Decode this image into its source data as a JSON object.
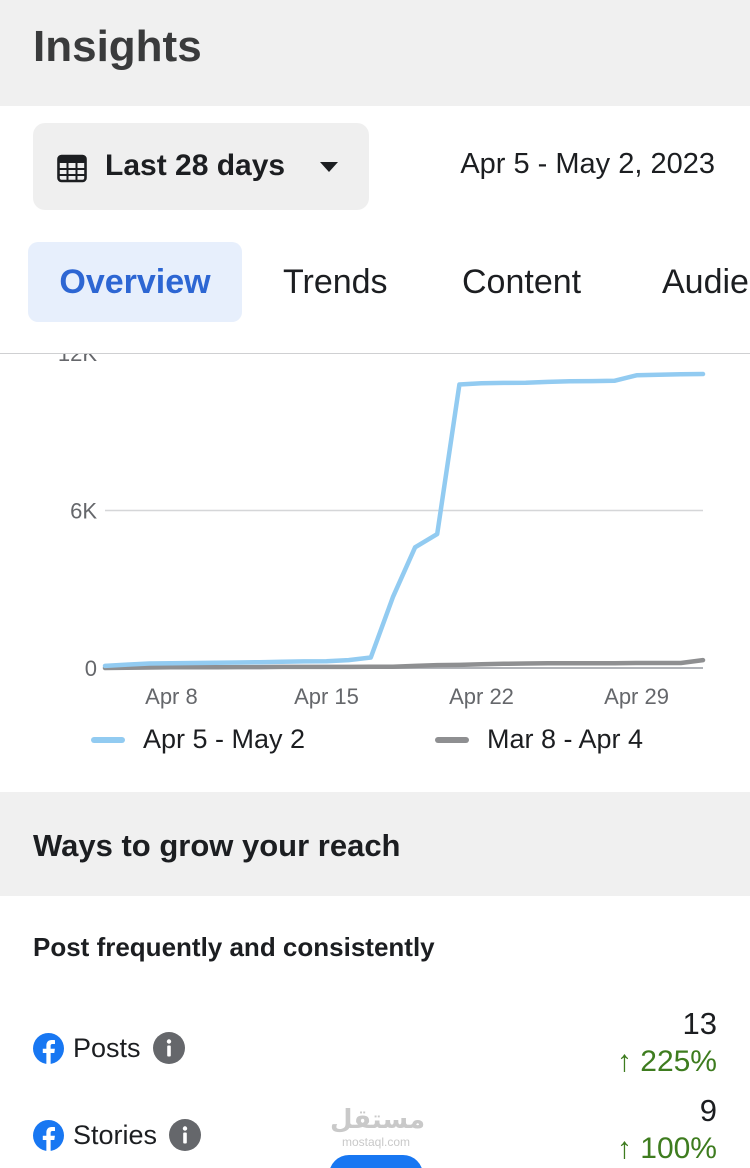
{
  "header": {
    "title": "Insights"
  },
  "date_filter": {
    "label": "Last 28 days",
    "range": "Apr 5 - May 2, 2023"
  },
  "tabs": [
    "Overview",
    "Trends",
    "Content",
    "Audie"
  ],
  "colors": {
    "current": "#92cbf1",
    "previous": "#8e8f91",
    "accent": "#2d66d3",
    "positive": "#3e7c1f",
    "facebook": "#1877f2"
  },
  "chart_data": {
    "type": "line",
    "y_ticks": [
      "12K",
      "6K",
      "0"
    ],
    "x_ticks": [
      "Apr 8",
      "Apr 15",
      "Apr 22",
      "Apr 29"
    ],
    "ylim": [
      0,
      12000
    ],
    "series": [
      {
        "name": "Apr 5 - May 2",
        "x": [
          5,
          6,
          7,
          8,
          9,
          10,
          11,
          12,
          13,
          14,
          15,
          16,
          17,
          18,
          19,
          20,
          21,
          22,
          23,
          24,
          25,
          26,
          27,
          28,
          29,
          30,
          31,
          32
        ],
        "values": [
          80,
          130,
          170,
          180,
          190,
          200,
          210,
          220,
          240,
          250,
          260,
          300,
          400,
          2700,
          4600,
          5100,
          10800,
          10850,
          10860,
          10870,
          10900,
          10920,
          10930,
          10940,
          11150,
          11170,
          11190,
          11200
        ]
      },
      {
        "name": "Mar 8 - Apr 4",
        "x": [
          5,
          6,
          7,
          8,
          9,
          10,
          11,
          12,
          13,
          14,
          15,
          16,
          17,
          18,
          19,
          20,
          21,
          22,
          23,
          24,
          25,
          26,
          27,
          28,
          29,
          30,
          31,
          32
        ],
        "values": [
          0,
          10,
          20,
          25,
          30,
          30,
          35,
          35,
          40,
          40,
          40,
          40,
          45,
          50,
          80,
          110,
          120,
          140,
          160,
          170,
          180,
          180,
          180,
          180,
          190,
          190,
          190,
          300
        ]
      }
    ]
  },
  "growth": {
    "title": "Ways to grow your reach",
    "subtitle": "Post frequently and consistently",
    "metrics": [
      {
        "label": "Posts",
        "value": "13",
        "change": "↑ 225%"
      },
      {
        "label": "Stories",
        "value": "9",
        "change": "↑ 100%"
      }
    ]
  },
  "watermark": {
    "main": "مستقل",
    "sub": "mostaql.com"
  }
}
